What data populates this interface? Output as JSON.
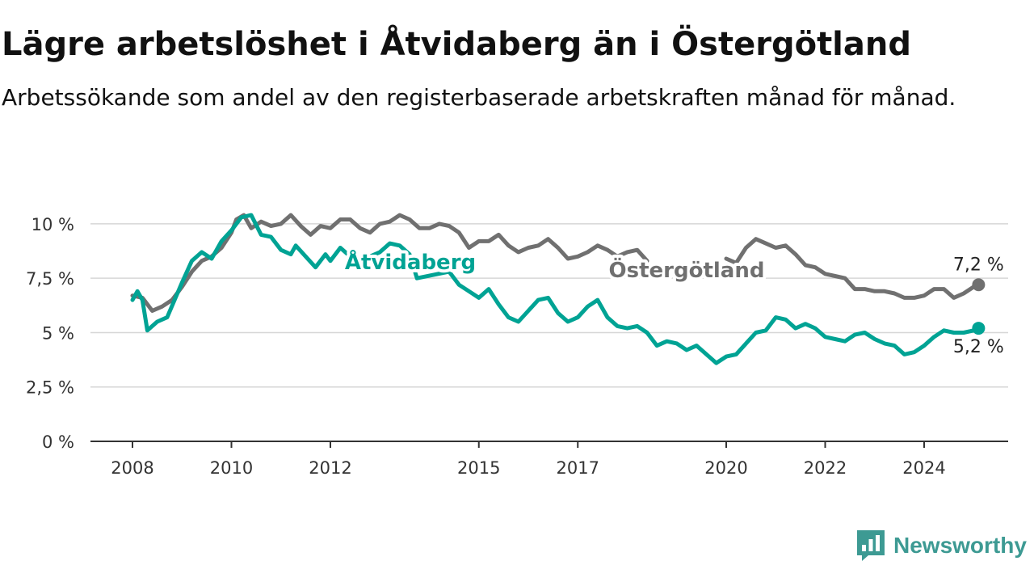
{
  "chart_data": {
    "type": "line",
    "title": "Lägre arbetslöshet i Åtvidaberg än i Östergötland",
    "subtitle": "Arbetssökande som andel av den registerbaserade arbetskraften månad för månad.",
    "xlabel": "",
    "ylabel": "",
    "x_ticks": [
      "2008",
      "2010",
      "2012",
      "2015",
      "2017",
      "2020",
      "2022",
      "2024"
    ],
    "y_ticks": [
      "0 %",
      "2,5 %",
      "5 %",
      "7,5 %",
      "10 %"
    ],
    "ylim": [
      0,
      11
    ],
    "xlim": [
      2007.6,
      2025.9
    ],
    "grid": true,
    "legend": "inline labels",
    "series": [
      {
        "name": "Östergötland",
        "color": "#707070",
        "end_label": "7,2 %",
        "points": [
          [
            2008.0,
            6.7
          ],
          [
            2008.2,
            6.6
          ],
          [
            2008.4,
            6.0
          ],
          [
            2008.6,
            6.2
          ],
          [
            2008.8,
            6.5
          ],
          [
            2009.0,
            7.1
          ],
          [
            2009.2,
            7.8
          ],
          [
            2009.4,
            8.3
          ],
          [
            2009.6,
            8.5
          ],
          [
            2009.8,
            8.9
          ],
          [
            2010.0,
            9.6
          ],
          [
            2010.1,
            10.2
          ],
          [
            2010.25,
            10.4
          ],
          [
            2010.4,
            9.8
          ],
          [
            2010.6,
            10.1
          ],
          [
            2010.8,
            9.9
          ],
          [
            2011.0,
            10.0
          ],
          [
            2011.2,
            10.4
          ],
          [
            2011.4,
            9.9
          ],
          [
            2011.6,
            9.5
          ],
          [
            2011.8,
            9.9
          ],
          [
            2012.0,
            9.8
          ],
          [
            2012.2,
            10.2
          ],
          [
            2012.4,
            10.2
          ],
          [
            2012.6,
            9.8
          ],
          [
            2012.8,
            9.6
          ],
          [
            2013.0,
            10.0
          ],
          [
            2013.2,
            10.1
          ],
          [
            2013.4,
            10.4
          ],
          [
            2013.6,
            10.2
          ],
          [
            2013.8,
            9.8
          ],
          [
            2014.0,
            9.8
          ],
          [
            2014.2,
            10.0
          ],
          [
            2014.4,
            9.9
          ],
          [
            2014.6,
            9.6
          ],
          [
            2014.8,
            8.9
          ],
          [
            2015.0,
            9.2
          ],
          [
            2015.2,
            9.2
          ],
          [
            2015.4,
            9.5
          ],
          [
            2015.6,
            9.0
          ],
          [
            2015.8,
            8.7
          ],
          [
            2016.0,
            8.9
          ],
          [
            2016.2,
            9.0
          ],
          [
            2016.4,
            9.3
          ],
          [
            2016.6,
            8.9
          ],
          [
            2016.8,
            8.4
          ],
          [
            2017.0,
            8.5
          ],
          [
            2017.2,
            8.7
          ],
          [
            2017.4,
            9.0
          ],
          [
            2017.6,
            8.8
          ],
          [
            2017.8,
            8.5
          ],
          [
            2018.0,
            8.7
          ],
          [
            2018.2,
            8.8
          ],
          [
            2018.4,
            8.3
          ],
          null,
          [
            2020.0,
            8.4
          ],
          [
            2020.2,
            8.2
          ],
          [
            2020.4,
            8.9
          ],
          [
            2020.6,
            9.3
          ],
          [
            2020.8,
            9.1
          ],
          [
            2021.0,
            8.9
          ],
          [
            2021.2,
            9.0
          ],
          [
            2021.4,
            8.6
          ],
          [
            2021.6,
            8.1
          ],
          [
            2021.8,
            8.0
          ],
          [
            2022.0,
            7.7
          ],
          [
            2022.2,
            7.6
          ],
          [
            2022.4,
            7.5
          ],
          [
            2022.6,
            7.0
          ],
          [
            2022.8,
            7.0
          ],
          [
            2023.0,
            6.9
          ],
          [
            2023.2,
            6.9
          ],
          [
            2023.4,
            6.8
          ],
          [
            2023.6,
            6.6
          ],
          [
            2023.8,
            6.6
          ],
          [
            2024.0,
            6.7
          ],
          [
            2024.2,
            7.0
          ],
          [
            2024.4,
            7.0
          ],
          [
            2024.6,
            6.6
          ],
          [
            2024.8,
            6.8
          ],
          [
            2025.0,
            7.1
          ],
          [
            2025.1,
            7.2
          ]
        ]
      },
      {
        "name": "Åtvidaberg",
        "color": "#00a394",
        "end_label": "5,2 %",
        "points": [
          [
            2008.0,
            6.5
          ],
          [
            2008.1,
            6.9
          ],
          [
            2008.2,
            6.5
          ],
          [
            2008.3,
            5.1
          ],
          [
            2008.5,
            5.5
          ],
          [
            2008.7,
            5.7
          ],
          [
            2009.0,
            7.3
          ],
          [
            2009.2,
            8.3
          ],
          [
            2009.4,
            8.7
          ],
          [
            2009.6,
            8.4
          ],
          [
            2009.8,
            9.2
          ],
          [
            2010.0,
            9.7
          ],
          [
            2010.2,
            10.3
          ],
          [
            2010.4,
            10.4
          ],
          [
            2010.6,
            9.5
          ],
          [
            2010.8,
            9.4
          ],
          [
            2011.0,
            8.8
          ],
          [
            2011.2,
            8.6
          ],
          [
            2011.3,
            9.0
          ],
          [
            2011.5,
            8.5
          ],
          [
            2011.7,
            8.0
          ],
          [
            2011.9,
            8.6
          ],
          [
            2012.0,
            8.3
          ],
          [
            2012.2,
            8.9
          ],
          [
            2012.4,
            8.5
          ],
          [
            2012.6,
            8.2
          ],
          [
            2012.8,
            8.5
          ],
          [
            2013.0,
            8.7
          ],
          [
            2013.2,
            9.1
          ],
          [
            2013.4,
            9.0
          ],
          [
            2013.6,
            8.6
          ],
          [
            2013.75,
            7.5
          ],
          [
            2014.4,
            7.8
          ],
          [
            2014.6,
            7.2
          ],
          [
            2014.8,
            6.9
          ],
          [
            2015.0,
            6.6
          ],
          [
            2015.2,
            7.0
          ],
          [
            2015.4,
            6.3
          ],
          [
            2015.6,
            5.7
          ],
          [
            2015.8,
            5.5
          ],
          [
            2016.0,
            6.0
          ],
          [
            2016.2,
            6.5
          ],
          [
            2016.4,
            6.6
          ],
          [
            2016.6,
            5.9
          ],
          [
            2016.8,
            5.5
          ],
          [
            2017.0,
            5.7
          ],
          [
            2017.2,
            6.2
          ],
          [
            2017.4,
            6.5
          ],
          [
            2017.6,
            5.7
          ],
          [
            2017.8,
            5.3
          ],
          [
            2018.0,
            5.2
          ],
          [
            2018.2,
            5.3
          ],
          [
            2018.4,
            5.0
          ],
          [
            2018.6,
            4.4
          ],
          [
            2018.8,
            4.6
          ],
          [
            2019.0,
            4.5
          ],
          [
            2019.2,
            4.2
          ],
          [
            2019.4,
            4.4
          ],
          [
            2019.6,
            4.0
          ],
          [
            2019.8,
            3.6
          ],
          [
            2020.0,
            3.9
          ],
          [
            2020.2,
            4.0
          ],
          [
            2020.4,
            4.5
          ],
          [
            2020.6,
            5.0
          ],
          [
            2020.8,
            5.1
          ],
          [
            2021.0,
            5.7
          ],
          [
            2021.2,
            5.6
          ],
          [
            2021.4,
            5.2
          ],
          [
            2021.6,
            5.4
          ],
          [
            2021.8,
            5.2
          ],
          [
            2022.0,
            4.8
          ],
          [
            2022.2,
            4.7
          ],
          [
            2022.4,
            4.6
          ],
          [
            2022.6,
            4.9
          ],
          [
            2022.8,
            5.0
          ],
          [
            2023.0,
            4.7
          ],
          [
            2023.2,
            4.5
          ],
          [
            2023.4,
            4.4
          ],
          [
            2023.6,
            4.0
          ],
          [
            2023.8,
            4.1
          ],
          [
            2024.0,
            4.4
          ],
          [
            2024.2,
            4.8
          ],
          [
            2024.4,
            5.1
          ],
          [
            2024.6,
            5.0
          ],
          [
            2024.8,
            5.0
          ],
          [
            2025.0,
            5.1
          ],
          [
            2025.1,
            5.2
          ]
        ]
      }
    ]
  },
  "brand": {
    "name": "Newsworthy",
    "color": "#3d9a93"
  }
}
